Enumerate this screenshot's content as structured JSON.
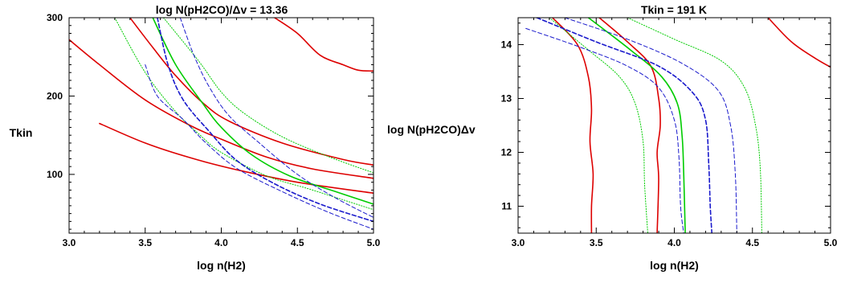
{
  "chart_data": [
    {
      "type": "line",
      "title": "log N(pH2CO)/Δv = 13.36",
      "xlabel": "log n(H2)",
      "ylabel": "Tkin",
      "xlim": [
        3.0,
        5.0
      ],
      "ylim": [
        25,
        300
      ],
      "xticks": [
        "3.0",
        "3.5",
        "4.0",
        "4.5",
        "5.0"
      ],
      "yticks": [
        "100",
        "200",
        "300"
      ],
      "grid": false,
      "series": [
        {
          "color": "#dd0000",
          "style": "solid",
          "width": 1.6,
          "points": [
            [
              3.0,
              272
            ],
            [
              3.2,
              240
            ],
            [
              3.5,
              195
            ],
            [
              3.8,
              162
            ],
            [
              4.0,
              145
            ],
            [
              4.3,
              122
            ],
            [
              4.6,
              107
            ],
            [
              5.0,
              95
            ]
          ]
        },
        {
          "color": "#dd0000",
          "style": "solid",
          "width": 1.6,
          "points": [
            [
              3.2,
              165
            ],
            [
              3.5,
              140
            ],
            [
              3.8,
              121
            ],
            [
              4.1,
              106
            ],
            [
              4.5,
              90
            ],
            [
              5.0,
              76
            ]
          ]
        },
        {
          "color": "#dd0000",
          "style": "solid",
          "width": 1.6,
          "points": [
            [
              3.4,
              300
            ],
            [
              3.55,
              262
            ],
            [
              3.7,
              226
            ],
            [
              3.88,
              191
            ],
            [
              4.05,
              168
            ],
            [
              4.4,
              140
            ],
            [
              4.8,
              119
            ],
            [
              5.0,
              112
            ]
          ]
        },
        {
          "color": "#dd0000",
          "style": "solid",
          "width": 1.6,
          "points": [
            [
              4.35,
              300
            ],
            [
              4.5,
              280
            ],
            [
              4.65,
              252
            ],
            [
              4.8,
              240
            ],
            [
              4.9,
              233
            ],
            [
              5.0,
              232
            ]
          ]
        },
        {
          "color": "#00cc00",
          "style": "solid",
          "width": 1.6,
          "points": [
            [
              3.55,
              300
            ],
            [
              3.7,
              240
            ],
            [
              3.88,
              190
            ],
            [
              4.0,
              160
            ],
            [
              4.2,
              125
            ],
            [
              4.45,
              98
            ],
            [
              4.75,
              78
            ],
            [
              5.0,
              62
            ]
          ]
        },
        {
          "color": "#00cc00",
          "style": "dotted",
          "width": 1.0,
          "points": [
            [
              3.3,
              300
            ],
            [
              3.5,
              230
            ],
            [
              3.7,
              180
            ],
            [
              3.85,
              152
            ],
            [
              4.0,
              128
            ],
            [
              4.3,
              98
            ],
            [
              4.6,
              80
            ],
            [
              5.0,
              55
            ]
          ]
        },
        {
          "color": "#00cc00",
          "style": "dotted",
          "width": 1.0,
          "points": [
            [
              3.62,
              300
            ],
            [
              3.85,
              245
            ],
            [
              4.0,
              205
            ],
            [
              4.15,
              178
            ],
            [
              4.4,
              148
            ],
            [
              4.7,
              123
            ],
            [
              5.0,
              102
            ]
          ]
        },
        {
          "color": "#1a1acc",
          "style": "dashed",
          "width": 1.6,
          "points": [
            [
              3.58,
              300
            ],
            [
              3.65,
              240
            ],
            [
              3.75,
              195
            ],
            [
              3.92,
              155
            ],
            [
              4.1,
              118
            ],
            [
              4.35,
              88
            ],
            [
              4.65,
              62
            ],
            [
              5.0,
              40
            ]
          ]
        },
        {
          "color": "#1a1acc",
          "style": "dashed",
          "width": 1.0,
          "points": [
            [
              3.5,
              240
            ],
            [
              3.58,
              200
            ],
            [
              3.75,
              170
            ],
            [
              3.9,
              140
            ],
            [
              4.1,
              108
            ],
            [
              4.4,
              78
            ],
            [
              4.7,
              52
            ],
            [
              5.0,
              30
            ]
          ]
        },
        {
          "color": "#1a1acc",
          "style": "dashed",
          "width": 1.0,
          "points": [
            [
              3.73,
              300
            ],
            [
              3.82,
              252
            ],
            [
              3.92,
              212
            ],
            [
              4.05,
              175
            ],
            [
              4.25,
              140
            ],
            [
              4.5,
              100
            ],
            [
              4.75,
              70
            ],
            [
              5.0,
              45
            ]
          ]
        }
      ]
    },
    {
      "type": "line",
      "title": "Tkin = 191  K",
      "xlabel": "log n(H2)",
      "ylabel": "log N(pH2CO)Δv",
      "xlim": [
        3.0,
        5.0
      ],
      "ylim": [
        10.5,
        14.5
      ],
      "xticks": [
        "3.0",
        "3.5",
        "4.0",
        "4.5",
        "5.0"
      ],
      "yticks": [
        "11",
        "12",
        "13",
        "14"
      ],
      "grid": false,
      "series": [
        {
          "color": "#dd0000",
          "style": "solid",
          "width": 1.6,
          "points": [
            [
              3.22,
              14.5
            ],
            [
              3.38,
              14.0
            ],
            [
              3.45,
              13.4
            ],
            [
              3.47,
              12.8
            ],
            [
              3.46,
              12.2
            ],
            [
              3.48,
              11.6
            ],
            [
              3.47,
              11.0
            ],
            [
              3.47,
              10.5
            ]
          ]
        },
        {
          "color": "#dd0000",
          "style": "solid",
          "width": 1.6,
          "points": [
            [
              3.52,
              14.5
            ],
            [
              3.7,
              14.05
            ],
            [
              3.85,
              13.6
            ],
            [
              3.9,
              13.0
            ],
            [
              3.91,
              12.5
            ],
            [
              3.89,
              12.0
            ],
            [
              3.9,
              11.5
            ],
            [
              3.89,
              10.5
            ]
          ]
        },
        {
          "color": "#dd0000",
          "style": "solid",
          "width": 1.6,
          "points": [
            [
              4.6,
              14.5
            ],
            [
              4.75,
              14.05
            ],
            [
              4.9,
              13.75
            ],
            [
              5.0,
              13.58
            ]
          ]
        },
        {
          "color": "#00cc00",
          "style": "solid",
          "width": 1.6,
          "points": [
            [
              3.45,
              14.5
            ],
            [
              3.72,
              13.9
            ],
            [
              3.92,
              13.4
            ],
            [
              4.02,
              12.9
            ],
            [
              4.05,
              12.3
            ],
            [
              4.06,
              11.6
            ],
            [
              4.07,
              10.5
            ]
          ]
        },
        {
          "color": "#00cc00",
          "style": "dotted",
          "width": 1.0,
          "points": [
            [
              3.2,
              14.5
            ],
            [
              3.45,
              13.9
            ],
            [
              3.65,
              13.4
            ],
            [
              3.75,
              12.9
            ],
            [
              3.8,
              12.2
            ],
            [
              3.81,
              11.4
            ],
            [
              3.83,
              10.5
            ]
          ]
        },
        {
          "color": "#00cc00",
          "style": "dotted",
          "width": 1.0,
          "points": [
            [
              3.7,
              14.5
            ],
            [
              4.0,
              14.1
            ],
            [
              4.3,
              13.7
            ],
            [
              4.45,
              13.2
            ],
            [
              4.52,
              12.5
            ],
            [
              4.55,
              11.7
            ],
            [
              4.56,
              10.5
            ]
          ]
        },
        {
          "color": "#1a1acc",
          "style": "dashed",
          "width": 1.6,
          "points": [
            [
              3.12,
              14.5
            ],
            [
              3.5,
              14.05
            ],
            [
              3.9,
              13.6
            ],
            [
              4.12,
              13.1
            ],
            [
              4.2,
              12.6
            ],
            [
              4.22,
              11.8
            ],
            [
              4.23,
              11.0
            ],
            [
              4.24,
              10.5
            ]
          ]
        },
        {
          "color": "#1a1acc",
          "style": "dashed",
          "width": 1.0,
          "points": [
            [
              3.05,
              14.3
            ],
            [
              3.4,
              13.95
            ],
            [
              3.7,
              13.6
            ],
            [
              3.9,
              13.2
            ],
            [
              4.0,
              12.6
            ],
            [
              4.03,
              11.9
            ],
            [
              4.04,
              11.0
            ],
            [
              4.06,
              10.5
            ]
          ]
        },
        {
          "color": "#1a1acc",
          "style": "dashed",
          "width": 1.0,
          "points": [
            [
              3.3,
              14.5
            ],
            [
              3.7,
              14.1
            ],
            [
              4.05,
              13.65
            ],
            [
              4.28,
              13.15
            ],
            [
              4.36,
              12.5
            ],
            [
              4.39,
              11.6
            ],
            [
              4.4,
              10.5
            ]
          ]
        }
      ]
    }
  ]
}
